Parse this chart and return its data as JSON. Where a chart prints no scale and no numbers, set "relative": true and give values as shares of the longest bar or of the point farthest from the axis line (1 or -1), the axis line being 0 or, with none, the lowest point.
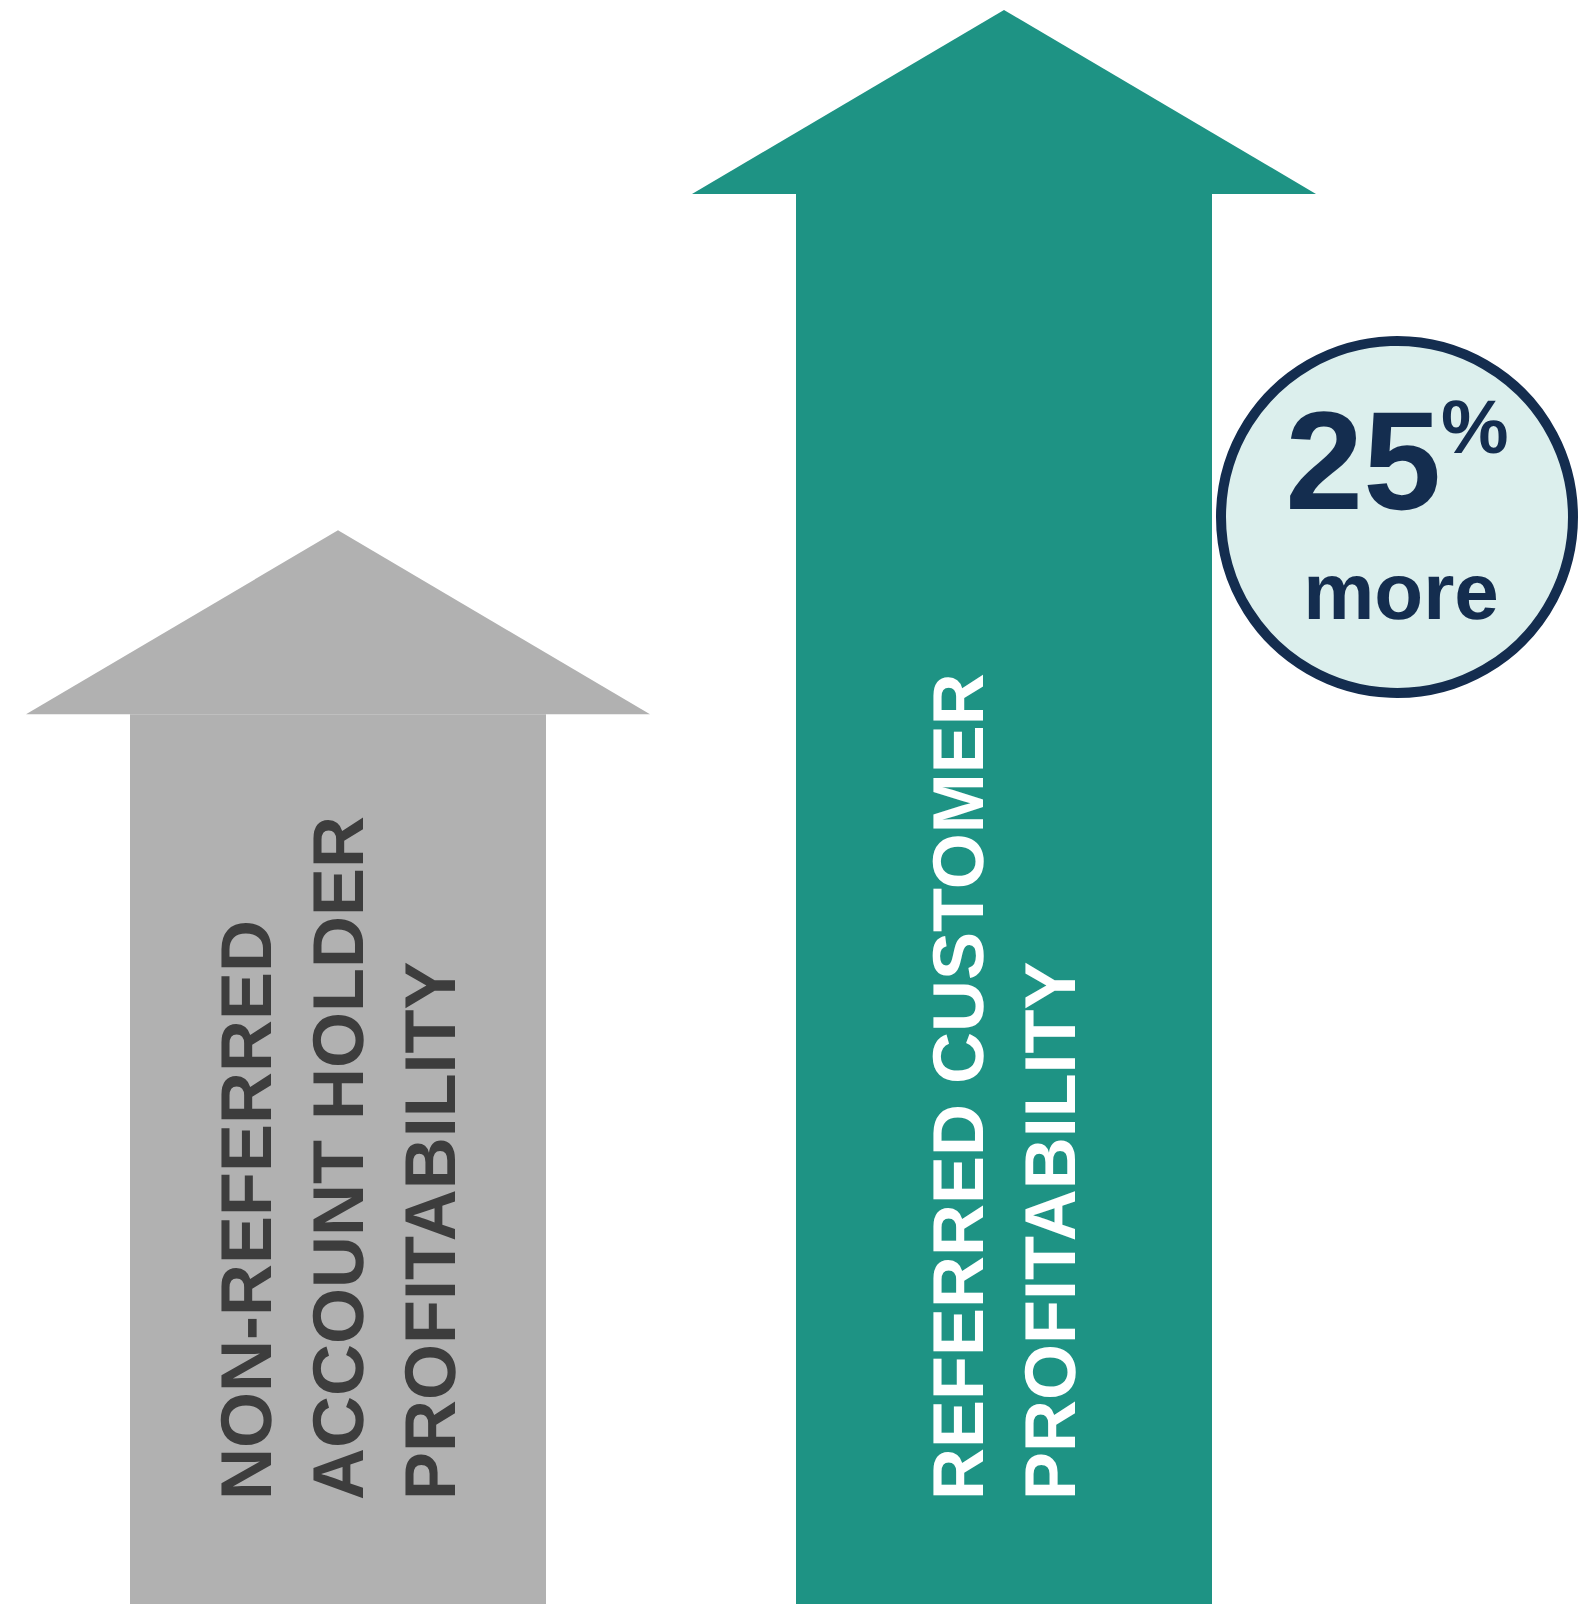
{
  "chart_data": {
    "type": "bar",
    "relative": true,
    "categories": [
      "NON-REFERRED\nACCOUNT HOLDER\nPROFITABILITY",
      "REFERRED CUSTOMER\nPROFITABILITY"
    ],
    "values": [
      0.631,
      1
    ],
    "colors": [
      "#b1b1b1",
      "#1e9384"
    ],
    "annotations": [
      "25% more"
    ]
  }
}
